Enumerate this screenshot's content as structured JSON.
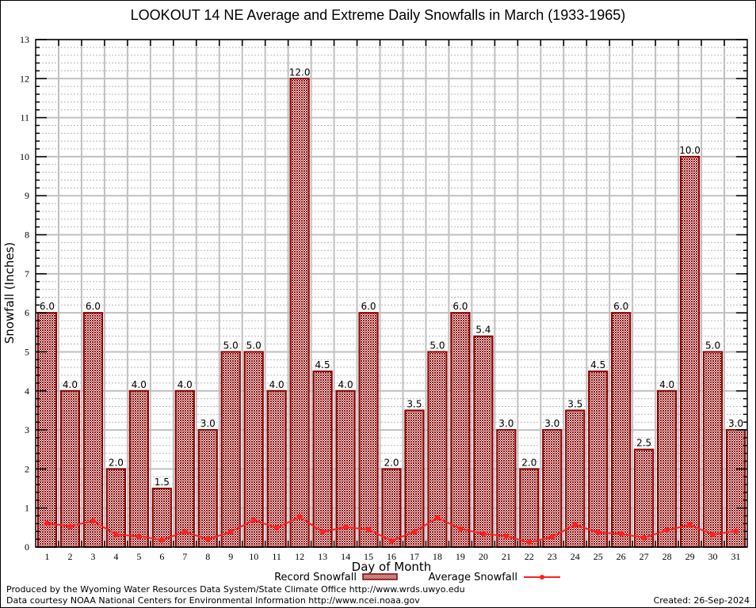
{
  "chart_data": {
    "type": "bar",
    "title": "LOOKOUT 14 NE Average and Extreme Daily Snowfalls in March (1933-1965)",
    "xlabel": "Day of Month",
    "ylabel": "Snowfall (Inches)",
    "ylim": [
      0,
      13
    ],
    "yticks": [
      0,
      1,
      2,
      3,
      4,
      5,
      6,
      7,
      8,
      9,
      10,
      11,
      12,
      13
    ],
    "grid": true,
    "legend_position": "bottom",
    "categories": [
      "1",
      "2",
      "3",
      "4",
      "5",
      "6",
      "7",
      "8",
      "9",
      "10",
      "11",
      "12",
      "13",
      "14",
      "15",
      "16",
      "17",
      "18",
      "19",
      "20",
      "21",
      "22",
      "23",
      "24",
      "25",
      "26",
      "27",
      "28",
      "29",
      "30",
      "31"
    ],
    "series": [
      {
        "name": "Record Snowfall",
        "type": "bar",
        "color": "#8b0000",
        "values": [
          6.0,
          4.0,
          6.0,
          2.0,
          4.0,
          1.5,
          4.0,
          3.0,
          5.0,
          5.0,
          4.0,
          12.0,
          4.5,
          4.0,
          6.0,
          2.0,
          3.5,
          5.0,
          6.0,
          5.4,
          3.0,
          2.0,
          3.0,
          3.5,
          4.5,
          6.0,
          2.5,
          4.0,
          10.0,
          5.0,
          3.0
        ],
        "labels": [
          "6.0",
          "4.0",
          "6.0",
          "2.0",
          "4.0",
          "1.5",
          "4.0",
          "3.0",
          "5.0",
          "5.0",
          "4.0",
          "12.0",
          "4.5",
          "4.0",
          "6.0",
          "2.0",
          "3.5",
          "5.0",
          "6.0",
          "5.4",
          "3.0",
          "2.0",
          "3.0",
          "3.5",
          "4.5",
          "6.0",
          "2.5",
          "4.0",
          "10.0",
          "5.0",
          "3.0"
        ]
      },
      {
        "name": "Average Snowfall",
        "type": "line",
        "color": "#ff2020",
        "values": [
          0.61,
          0.53,
          0.67,
          0.32,
          0.28,
          0.18,
          0.39,
          0.2,
          0.39,
          0.69,
          0.49,
          0.77,
          0.39,
          0.51,
          0.45,
          0.16,
          0.39,
          0.75,
          0.47,
          0.34,
          0.28,
          0.12,
          0.26,
          0.57,
          0.37,
          0.34,
          0.24,
          0.43,
          0.57,
          0.32,
          0.41
        ]
      }
    ]
  },
  "legend": {
    "record_label": "Record Snowfall",
    "average_label": "Average Snowfall"
  },
  "footer": {
    "produced_by": "Produced by the Wyoming Water Resources Data System/State Climate Office http://www.wrds.uwyo.edu",
    "data_courtesy": "Data courtesy NOAA National Centers for Environmental Information http://www.ncei.noaa.gov",
    "created": "Created: 26-Sep-2024"
  }
}
